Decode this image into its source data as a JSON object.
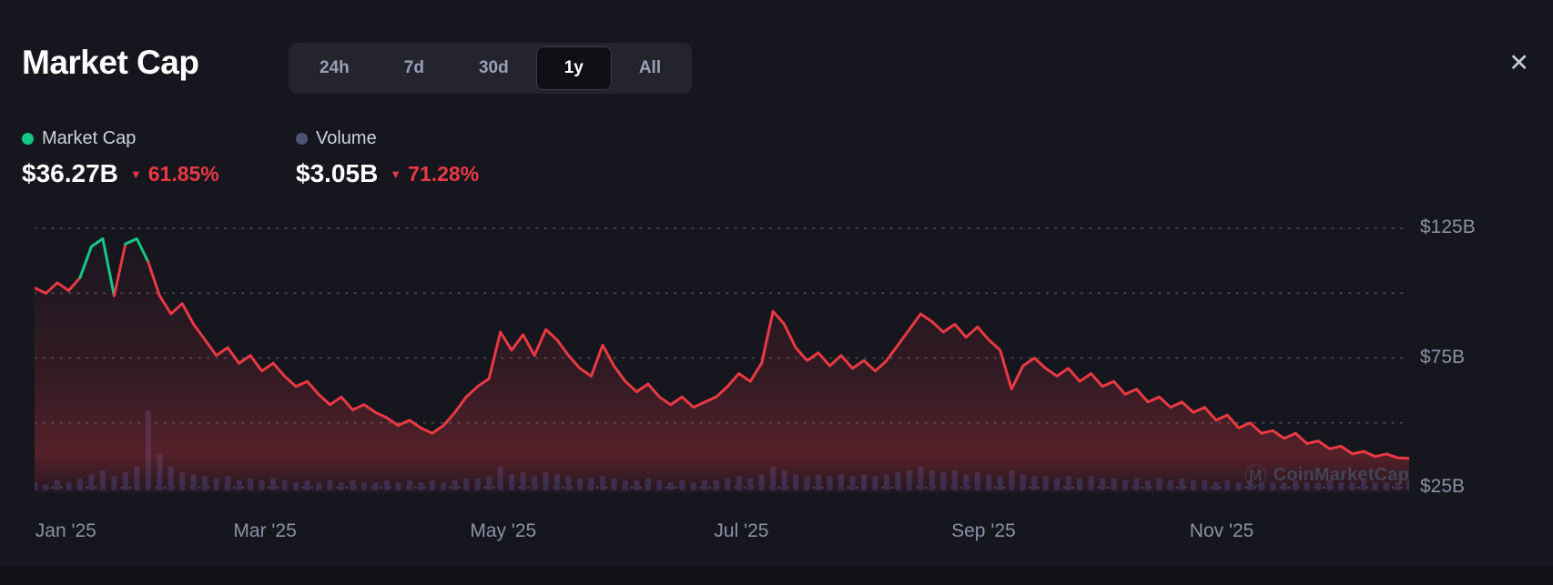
{
  "header": {
    "title": "Market Cap",
    "tabs": [
      "24h",
      "7d",
      "30d",
      "1y",
      "All"
    ],
    "active_tab": "1y",
    "close_glyph": "✕"
  },
  "ui": {
    "caret_down_glyph": "▼"
  },
  "legend": [
    {
      "name": "Market Cap",
      "dot_color": "#16c784",
      "value": "$36.27B",
      "change_pct": "61.85%",
      "change_dir": "down"
    },
    {
      "name": "Volume",
      "dot_color": "#4d5478",
      "value": "$3.05B",
      "change_pct": "71.28%",
      "change_dir": "down"
    }
  ],
  "watermark": {
    "logo_glyph": "Ⓜ",
    "text": "CoinMarketCap"
  },
  "colors": {
    "background": "#16161f",
    "up_green": "#16c784",
    "down_red": "#ea3943",
    "volume_bar": "#272d4e",
    "axis_label": "#8b91a5"
  },
  "chart_data": {
    "type": "line",
    "title": "Market Cap (1y)",
    "y_unit": "$B",
    "total_days": 352,
    "ylim": [
      25,
      130
    ],
    "y_ticks": [
      {
        "value": 125,
        "label": "$125B"
      },
      {
        "value": 100,
        "label": ""
      },
      {
        "value": 75,
        "label": "$75B"
      },
      {
        "value": 50,
        "label": ""
      },
      {
        "value": 25,
        "label": "$25B"
      }
    ],
    "x_ticks": [
      {
        "label": "Jan '25",
        "day": 8
      },
      {
        "label": "Mar '25",
        "day": 59
      },
      {
        "label": "May '25",
        "day": 120
      },
      {
        "label": "Jul '25",
        "day": 181
      },
      {
        "label": "Sep '25",
        "day": 243
      },
      {
        "label": "Nov '25",
        "day": 304
      }
    ],
    "series": [
      {
        "name": "Market Cap",
        "type": "line",
        "unit": "$B",
        "color_up": "#16c784",
        "color_down": "#ea3943",
        "up_threshold": 110,
        "area_color": "#ea3943",
        "values": [
          102,
          100,
          104,
          101,
          106,
          118,
          121,
          99,
          119,
          121,
          112,
          99,
          92,
          96,
          88,
          82,
          76,
          79,
          73,
          76,
          70,
          73,
          68,
          64,
          66,
          61,
          57,
          60,
          55,
          57,
          54,
          52,
          49,
          51,
          48,
          46,
          49,
          54,
          60,
          64,
          67,
          85,
          78,
          84,
          76,
          86,
          82,
          76,
          71,
          68,
          80,
          72,
          66,
          62,
          65,
          60,
          57,
          60,
          56,
          58,
          60,
          64,
          69,
          66,
          73,
          93,
          88,
          79,
          74,
          77,
          72,
          76,
          71,
          74,
          70,
          74,
          80,
          86,
          92,
          89,
          85,
          88,
          83,
          87,
          82,
          78,
          63,
          72,
          75,
          71,
          68,
          71,
          66,
          69,
          64,
          66,
          61,
          63,
          58,
          60,
          56,
          58,
          54,
          56,
          51,
          53,
          48,
          50,
          46,
          47,
          44,
          46,
          42,
          43,
          40,
          41,
          38,
          39,
          37,
          38,
          36.5,
          36.3
        ]
      },
      {
        "name": "Volume",
        "type": "bar",
        "unit": "$B",
        "color": "#272d4e",
        "values": [
          2,
          1.5,
          2.5,
          2,
          3,
          4,
          5,
          3.5,
          4.5,
          6,
          20,
          9,
          6,
          4.5,
          4,
          3.5,
          3,
          3.5,
          2.5,
          3,
          2.5,
          3,
          2.5,
          2,
          2.5,
          2,
          2.5,
          2,
          2.5,
          2,
          2,
          2.5,
          2,
          2.5,
          2,
          2.5,
          2,
          2.5,
          3,
          3,
          3.5,
          6,
          4,
          4.5,
          3.5,
          4.5,
          4,
          3.5,
          3,
          3,
          3.5,
          3,
          2.5,
          2.5,
          3,
          2.5,
          2,
          2.5,
          2,
          2.5,
          2.5,
          3,
          3.5,
          3,
          4,
          6,
          5,
          4,
          3.5,
          4,
          3.5,
          4,
          3.5,
          4,
          3.5,
          4,
          4.5,
          5,
          6,
          5,
          4.5,
          5,
          4,
          4.5,
          4,
          3.5,
          5,
          4,
          3.5,
          3.5,
          3,
          3.5,
          3,
          3.5,
          3,
          3,
          2.5,
          3,
          2.5,
          3,
          2.5,
          3,
          2.5,
          2.5,
          2,
          2.5,
          2,
          2.5,
          2,
          2,
          2,
          2.5,
          2,
          2,
          2.5,
          2,
          2,
          2.5,
          2,
          2,
          2,
          2.5
        ]
      }
    ]
  }
}
